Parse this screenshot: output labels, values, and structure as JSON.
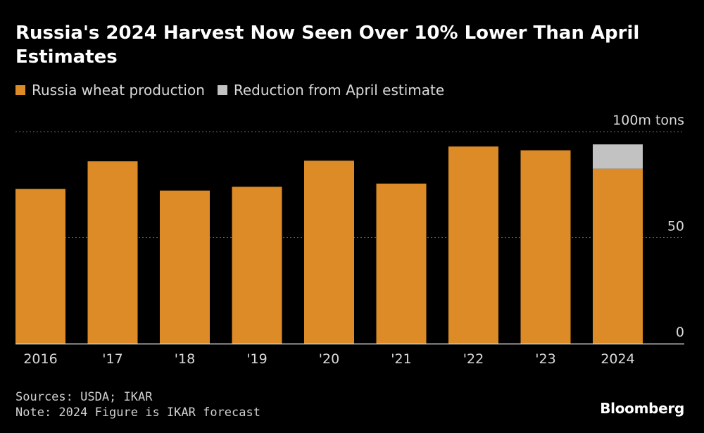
{
  "chart_data": {
    "type": "bar",
    "title": "Russia's 2024 Harvest Now Seen Over 10% Lower Than April Estimates",
    "ylabel": "100m tons",
    "ylim": [
      0,
      100
    ],
    "yticks": [
      {
        "value": 100,
        "label": "100m tons"
      },
      {
        "value": 50,
        "label": "50"
      },
      {
        "value": 0,
        "label": "0"
      }
    ],
    "categories": [
      "2016",
      "'17",
      "'18",
      "'19",
      "'20",
      "'21",
      "'22",
      "'23",
      "2024"
    ],
    "series": [
      {
        "name": "Russia wheat production",
        "color": "#dc8b27",
        "values": [
          73,
          86,
          72.2,
          74,
          86.3,
          75.5,
          93,
          91.2,
          82.5
        ]
      },
      {
        "name": "Reduction from April estimate",
        "color": "#c2c2c2",
        "values": [
          0,
          0,
          0,
          0,
          0,
          0,
          0,
          0,
          11.5
        ]
      }
    ],
    "stacked": true,
    "grid": true,
    "legend_position": "top-left"
  },
  "footer": {
    "sources": "Sources: USDA; IKAR",
    "note": "Note: 2024 Figure is IKAR forecast",
    "brand": "Bloomberg"
  }
}
